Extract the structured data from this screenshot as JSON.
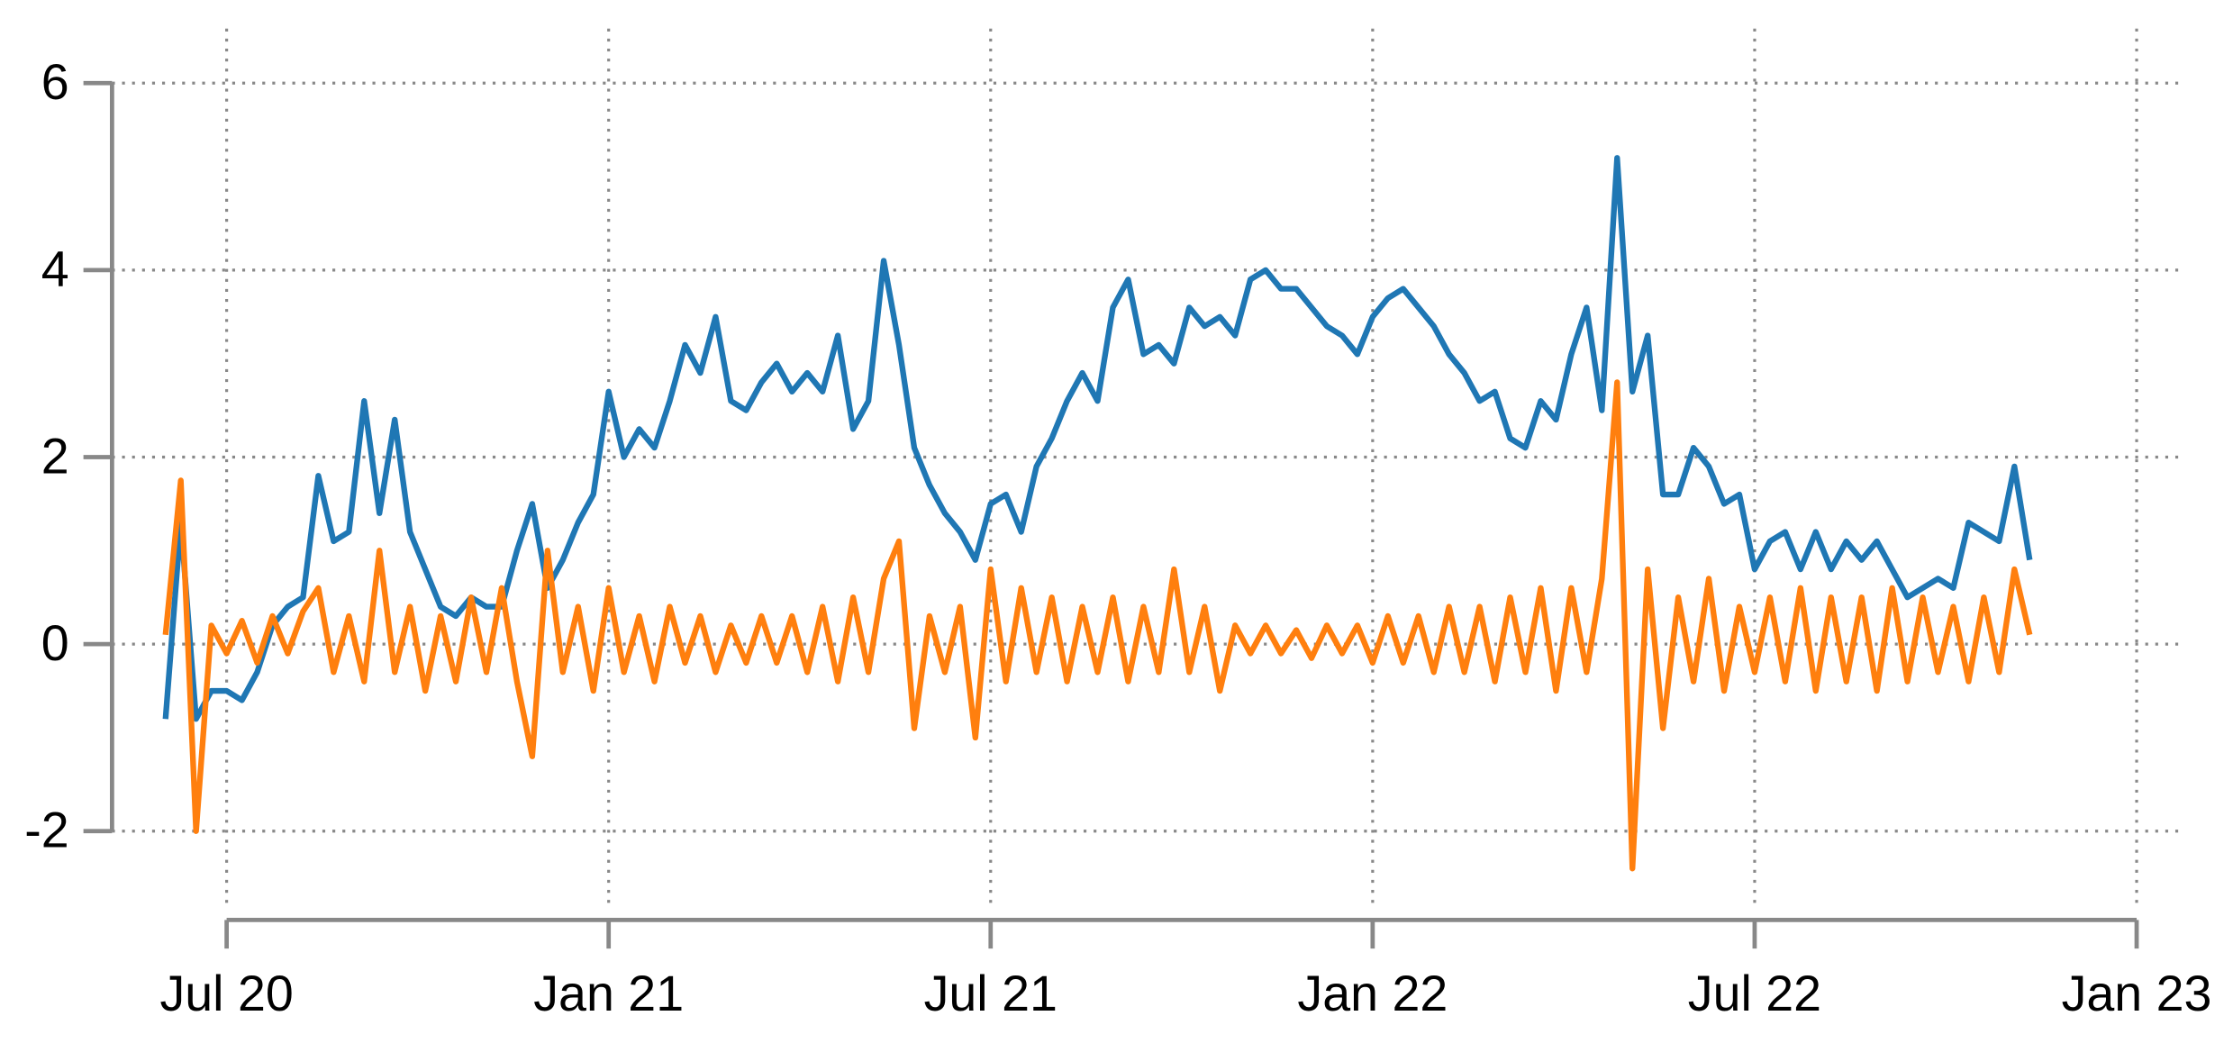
{
  "chart_data": {
    "type": "line",
    "x": [
      2020.42,
      2020.44,
      2020.46,
      2020.48,
      2020.5,
      2020.52,
      2020.54,
      2020.56,
      2020.58,
      2020.6,
      2020.62,
      2020.64,
      2020.66,
      2020.68,
      2020.7,
      2020.72,
      2020.74,
      2020.76,
      2020.78,
      2020.8,
      2020.82,
      2020.84,
      2020.86,
      2020.88,
      2020.9,
      2020.92,
      2020.94,
      2020.96,
      2020.98,
      2021.0,
      2021.02,
      2021.04,
      2021.06,
      2021.08,
      2021.1,
      2021.12,
      2021.14,
      2021.16,
      2021.18,
      2021.2,
      2021.22,
      2021.24,
      2021.26,
      2021.28,
      2021.3,
      2021.32,
      2021.34,
      2021.36,
      2021.38,
      2021.4,
      2021.42,
      2021.44,
      2021.46,
      2021.48,
      2021.5,
      2021.52,
      2021.54,
      2021.56,
      2021.58,
      2021.6,
      2021.62,
      2021.64,
      2021.66,
      2021.68,
      2021.7,
      2021.72,
      2021.74,
      2021.76,
      2021.78,
      2021.8,
      2021.82,
      2021.84,
      2021.86,
      2021.88,
      2021.9,
      2021.92,
      2021.94,
      2021.96,
      2021.98,
      2022.0,
      2022.02,
      2022.04,
      2022.06,
      2022.08,
      2022.1,
      2022.12,
      2022.14,
      2022.16,
      2022.18,
      2022.2,
      2022.22,
      2022.24,
      2022.26,
      2022.28,
      2022.3,
      2022.32,
      2022.34,
      2022.36,
      2022.38,
      2022.4,
      2022.42,
      2022.44,
      2022.46,
      2022.48,
      2022.5,
      2022.52,
      2022.54,
      2022.56,
      2022.58,
      2022.6,
      2022.62,
      2022.64,
      2022.66,
      2022.68,
      2022.7,
      2022.72,
      2022.74,
      2022.76,
      2022.78,
      2022.8,
      2022.82,
      2022.84,
      2022.86
    ],
    "series": [
      {
        "color": "#1f77b4",
        "values": [
          -0.8,
          1.3,
          -0.8,
          -0.5,
          -0.5,
          -0.6,
          -0.3,
          0.2,
          0.4,
          0.5,
          1.8,
          1.1,
          1.2,
          2.6,
          1.4,
          2.4,
          1.2,
          0.8,
          0.4,
          0.3,
          0.5,
          0.4,
          0.4,
          1.0,
          1.5,
          0.6,
          0.9,
          1.3,
          1.6,
          2.7,
          2.0,
          2.3,
          2.1,
          2.6,
          3.2,
          2.9,
          3.5,
          2.6,
          2.5,
          2.8,
          3.0,
          2.7,
          2.9,
          2.7,
          3.3,
          2.3,
          2.6,
          4.1,
          3.2,
          2.1,
          1.7,
          1.4,
          1.2,
          0.9,
          1.5,
          1.6,
          1.2,
          1.9,
          2.2,
          2.6,
          2.9,
          2.6,
          3.6,
          3.9,
          3.1,
          3.2,
          3.0,
          3.6,
          3.4,
          3.5,
          3.3,
          3.9,
          4.0,
          3.8,
          3.8,
          3.6,
          3.4,
          3.3,
          3.1,
          3.5,
          3.7,
          3.8,
          3.6,
          3.4,
          3.1,
          2.9,
          2.6,
          2.7,
          2.2,
          2.1,
          2.6,
          2.4,
          3.1,
          3.6,
          2.5,
          5.2,
          2.7,
          3.3,
          1.6,
          1.6,
          2.1,
          1.9,
          1.5,
          1.6,
          0.8,
          1.1,
          1.2,
          0.8,
          1.2,
          0.8,
          1.1,
          0.9,
          1.1,
          0.8,
          0.5,
          0.6,
          0.7,
          0.6,
          1.3,
          1.2,
          1.1,
          1.9,
          0.9
        ]
      },
      {
        "color": "#ff7f0e",
        "values": [
          0.1,
          1.75,
          -2.0,
          0.2,
          -0.1,
          0.25,
          -0.2,
          0.3,
          -0.1,
          0.35,
          0.6,
          -0.3,
          0.3,
          -0.4,
          1.0,
          -0.3,
          0.4,
          -0.5,
          0.3,
          -0.4,
          0.5,
          -0.3,
          0.6,
          -0.4,
          -1.2,
          1.0,
          -0.3,
          0.4,
          -0.5,
          0.6,
          -0.3,
          0.3,
          -0.4,
          0.4,
          -0.2,
          0.3,
          -0.3,
          0.2,
          -0.2,
          0.3,
          -0.2,
          0.3,
          -0.3,
          0.4,
          -0.4,
          0.5,
          -0.3,
          0.7,
          1.1,
          -0.9,
          0.3,
          -0.3,
          0.4,
          -1.0,
          0.8,
          -0.4,
          0.6,
          -0.3,
          0.5,
          -0.4,
          0.4,
          -0.3,
          0.5,
          -0.4,
          0.4,
          -0.3,
          0.8,
          -0.3,
          0.4,
          -0.5,
          0.2,
          -0.1,
          0.2,
          -0.1,
          0.15,
          -0.15,
          0.2,
          -0.1,
          0.2,
          -0.2,
          0.3,
          -0.2,
          0.3,
          -0.3,
          0.4,
          -0.3,
          0.4,
          -0.4,
          0.5,
          -0.3,
          0.6,
          -0.5,
          0.6,
          -0.3,
          0.7,
          2.8,
          -2.4,
          0.8,
          -0.9,
          0.5,
          -0.4,
          0.7,
          -0.5,
          0.4,
          -0.3,
          0.5,
          -0.4,
          0.6,
          -0.5,
          0.5,
          -0.4,
          0.5,
          -0.5,
          0.6,
          -0.4,
          0.5,
          -0.3,
          0.4,
          -0.4,
          0.5,
          -0.3,
          0.8,
          0.1
        ]
      }
    ],
    "xlim": [
      2020.35,
      2023.06
    ],
    "xticks": [
      {
        "value": 2020.5,
        "label": "Jul 20"
      },
      {
        "value": 2021.0,
        "label": "Jan 21"
      },
      {
        "value": 2021.5,
        "label": "Jul 21"
      },
      {
        "value": 2022.0,
        "label": "Jan 22"
      },
      {
        "value": 2022.5,
        "label": "Jul 22"
      },
      {
        "value": 2023.0,
        "label": "Jan 23"
      }
    ],
    "ylim": [
      -2.95,
      6.2
    ],
    "yticks": [
      -2,
      0,
      2,
      4,
      6
    ],
    "grid": true
  }
}
